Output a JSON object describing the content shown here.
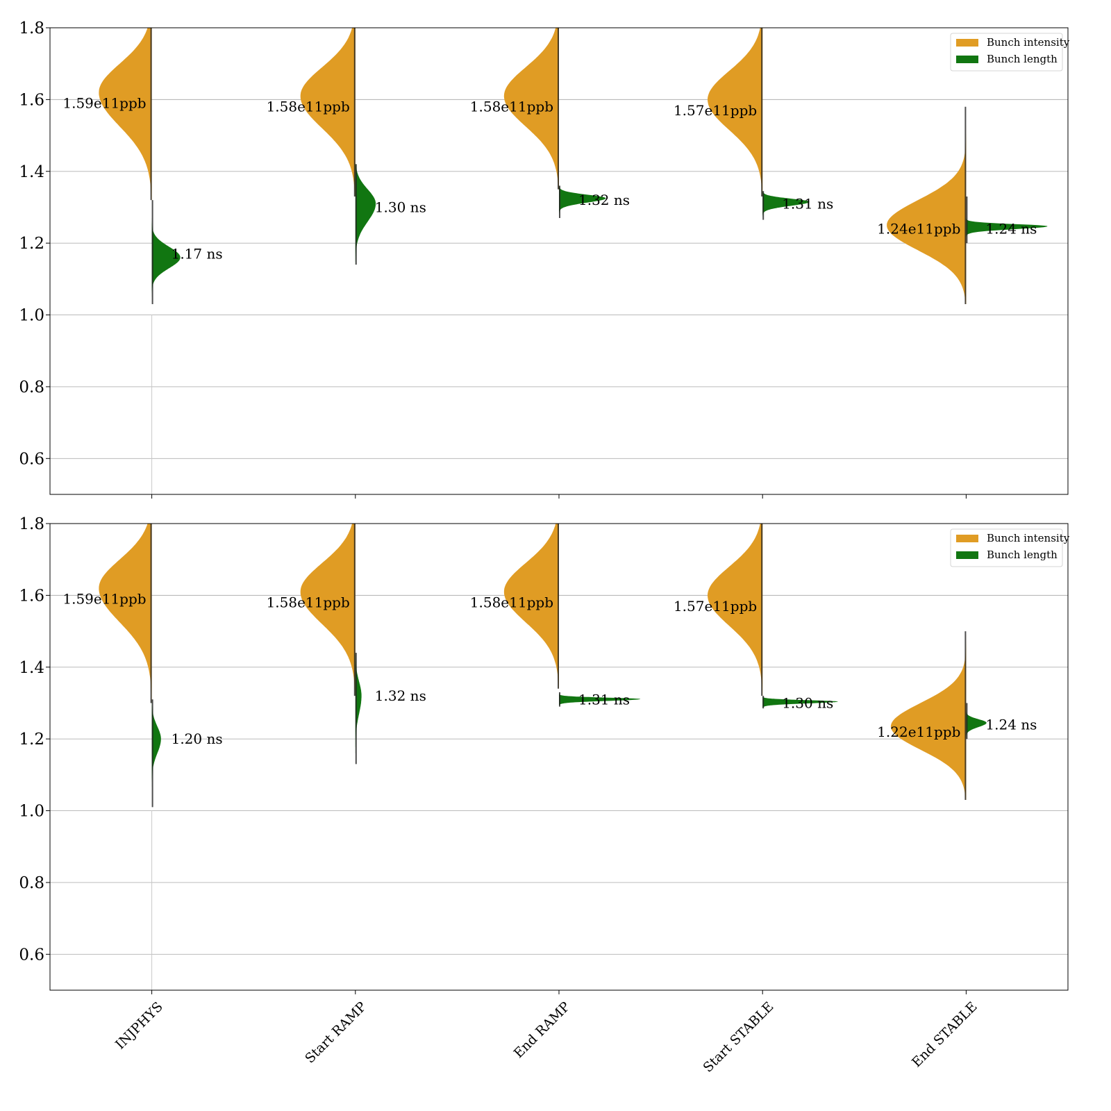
{
  "chart_data": {
    "type": "violin",
    "categories": [
      "INJPHYS",
      "Start RAMP",
      "End RAMP",
      "Start STABLE",
      "End STABLE"
    ],
    "ylim": [
      0.5,
      1.8
    ],
    "yticks": [
      "0.6",
      "0.8",
      "1.0",
      "1.2",
      "1.4",
      "1.6",
      "1.8"
    ],
    "grid": "horizontal",
    "legend_position": "top-right",
    "colors": {
      "intensity": "#e09c24",
      "length": "#117611"
    },
    "legend": [
      "Bunch intensity",
      "Bunch length"
    ],
    "panels": [
      {
        "intensity": [
          {
            "label": "1.59e11ppb",
            "median": 1.59,
            "peak": 1.62,
            "min": 1.32,
            "max": 1.8,
            "sd_lo": 0.095,
            "sd_hi": 0.08,
            "density": 0.26
          },
          {
            "label": "1.58e11ppb",
            "median": 1.58,
            "peak": 1.61,
            "min": 1.33,
            "max": 1.8,
            "sd_lo": 0.09,
            "sd_hi": 0.08,
            "density": 0.27
          },
          {
            "label": "1.58e11ppb",
            "median": 1.58,
            "peak": 1.61,
            "min": 1.35,
            "max": 1.8,
            "sd_lo": 0.085,
            "sd_hi": 0.08,
            "density": 0.27
          },
          {
            "label": "1.57e11ppb",
            "median": 1.57,
            "peak": 1.6,
            "min": 1.33,
            "max": 1.8,
            "sd_lo": 0.085,
            "sd_hi": 0.08,
            "density": 0.27
          },
          {
            "label": "1.24e11ppb",
            "median": 1.24,
            "peak": 1.25,
            "min": 1.03,
            "max": 1.58,
            "sd_lo": 0.07,
            "sd_hi": 0.07,
            "density": 0.39
          }
        ],
        "length": [
          {
            "label": "1.17 ns",
            "median": 1.17,
            "peak": 1.16,
            "min": 1.03,
            "max": 1.32,
            "sd_lo": 0.03,
            "sd_hi": 0.03,
            "density": 0.14
          },
          {
            "label": "1.30 ns",
            "median": 1.3,
            "peak": 1.31,
            "min": 1.14,
            "max": 1.42,
            "sd_lo": 0.05,
            "sd_hi": 0.04,
            "density": 0.1
          },
          {
            "label": "1.32 ns",
            "median": 1.32,
            "peak": 1.325,
            "min": 1.27,
            "max": 1.36,
            "sd_lo": 0.012,
            "sd_hi": 0.01,
            "density": 0.23
          },
          {
            "label": "1.31 ns",
            "median": 1.31,
            "peak": 1.315,
            "min": 1.265,
            "max": 1.345,
            "sd_lo": 0.011,
            "sd_hi": 0.009,
            "density": 0.23
          },
          {
            "label": "1.24 ns",
            "median": 1.24,
            "peak": 1.247,
            "min": 1.2,
            "max": 1.33,
            "sd_lo": 0.008,
            "sd_hi": 0.006,
            "density": 0.4
          }
        ]
      },
      {
        "intensity": [
          {
            "label": "1.59e11ppb",
            "median": 1.59,
            "peak": 1.62,
            "min": 1.3,
            "max": 1.8,
            "sd_lo": 0.095,
            "sd_hi": 0.08,
            "density": 0.26
          },
          {
            "label": "1.58e11ppb",
            "median": 1.58,
            "peak": 1.61,
            "min": 1.32,
            "max": 1.8,
            "sd_lo": 0.09,
            "sd_hi": 0.08,
            "density": 0.27
          },
          {
            "label": "1.58e11ppb",
            "median": 1.58,
            "peak": 1.61,
            "min": 1.34,
            "max": 1.8,
            "sd_lo": 0.085,
            "sd_hi": 0.08,
            "density": 0.27
          },
          {
            "label": "1.57e11ppb",
            "median": 1.57,
            "peak": 1.6,
            "min": 1.32,
            "max": 1.8,
            "sd_lo": 0.085,
            "sd_hi": 0.08,
            "density": 0.27
          },
          {
            "label": "1.22e11ppb",
            "median": 1.22,
            "peak": 1.235,
            "min": 1.03,
            "max": 1.5,
            "sd_lo": 0.065,
            "sd_hi": 0.065,
            "density": 0.37
          }
        ],
        "length": [
          {
            "label": "1.20 ns",
            "median": 1.2,
            "peak": 1.2,
            "min": 1.01,
            "max": 1.31,
            "sd_lo": 0.04,
            "sd_hi": 0.035,
            "density": 0.045
          },
          {
            "label": "1.32 ns",
            "median": 1.32,
            "peak": 1.32,
            "min": 1.13,
            "max": 1.44,
            "sd_lo": 0.05,
            "sd_hi": 0.04,
            "density": 0.03
          },
          {
            "label": "1.31 ns",
            "median": 1.31,
            "peak": 1.311,
            "min": 1.29,
            "max": 1.33,
            "sd_lo": 0.005,
            "sd_hi": 0.004,
            "density": 0.4
          },
          {
            "label": "1.30 ns",
            "median": 1.3,
            "peak": 1.304,
            "min": 1.285,
            "max": 1.32,
            "sd_lo": 0.005,
            "sd_hi": 0.004,
            "density": 0.37
          },
          {
            "label": "1.24 ns",
            "median": 1.24,
            "peak": 1.245,
            "min": 1.2,
            "max": 1.3,
            "sd_lo": 0.012,
            "sd_hi": 0.01,
            "density": 0.1
          }
        ]
      }
    ]
  }
}
